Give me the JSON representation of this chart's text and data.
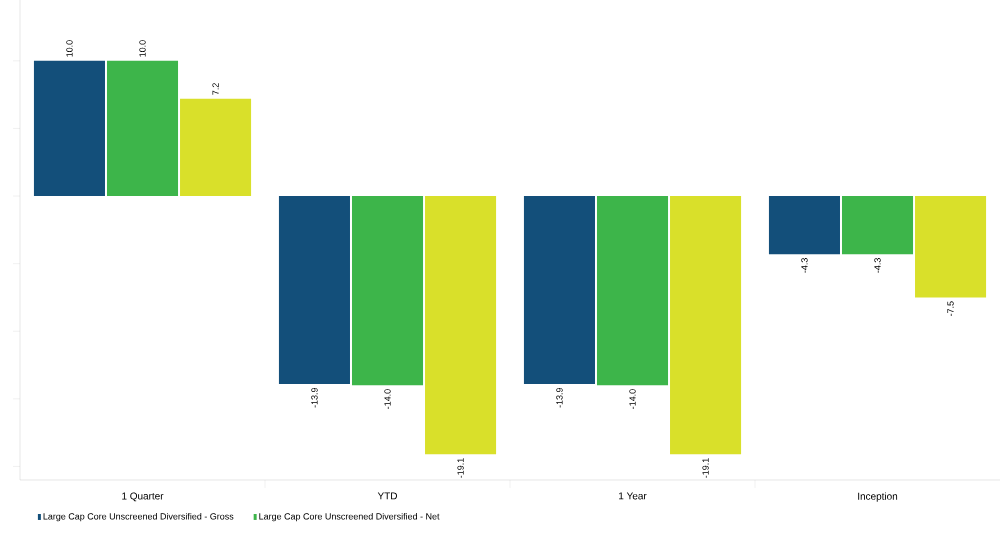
{
  "chart_data": {
    "type": "bar",
    "categories": [
      "1 Quarter",
      "YTD",
      "1 Year",
      "Inception"
    ],
    "series": [
      {
        "name": "Large Cap Core Unscreened Diversified - Gross",
        "color": "#134f7a",
        "values": [
          10.0,
          -13.9,
          -13.9,
          -4.3
        ],
        "value_labels": [
          "10.0",
          "-13.9",
          "-13.9",
          "-4.3"
        ]
      },
      {
        "name": "Large Cap Core Unscreened Diversified - Net",
        "color": "#3db54a",
        "values": [
          10.0,
          -14.0,
          -14.0,
          -4.3
        ],
        "value_labels": [
          "10.0",
          "-14.0",
          "-14.0",
          "-4.3"
        ]
      },
      {
        "color": "#d9e02a",
        "values": [
          7.2,
          -19.1,
          -19.1,
          -7.5
        ],
        "value_labels": [
          "7.2",
          "-19.1",
          "-19.1",
          "-7.5"
        ]
      }
    ],
    "ylim": [
      -21,
      14.5
    ],
    "yticks": [
      {
        "value": 10,
        "label": null
      },
      {
        "value": 5,
        "label": null
      },
      {
        "value": 0,
        "label": null
      },
      {
        "value": -5,
        "label": null
      },
      {
        "value": -10,
        "label": null
      },
      {
        "value": -15,
        "label": null
      },
      {
        "value": -20,
        "label": null
      }
    ],
    "tick_labels": "x",
    "grid": false,
    "legend": "bottom"
  }
}
